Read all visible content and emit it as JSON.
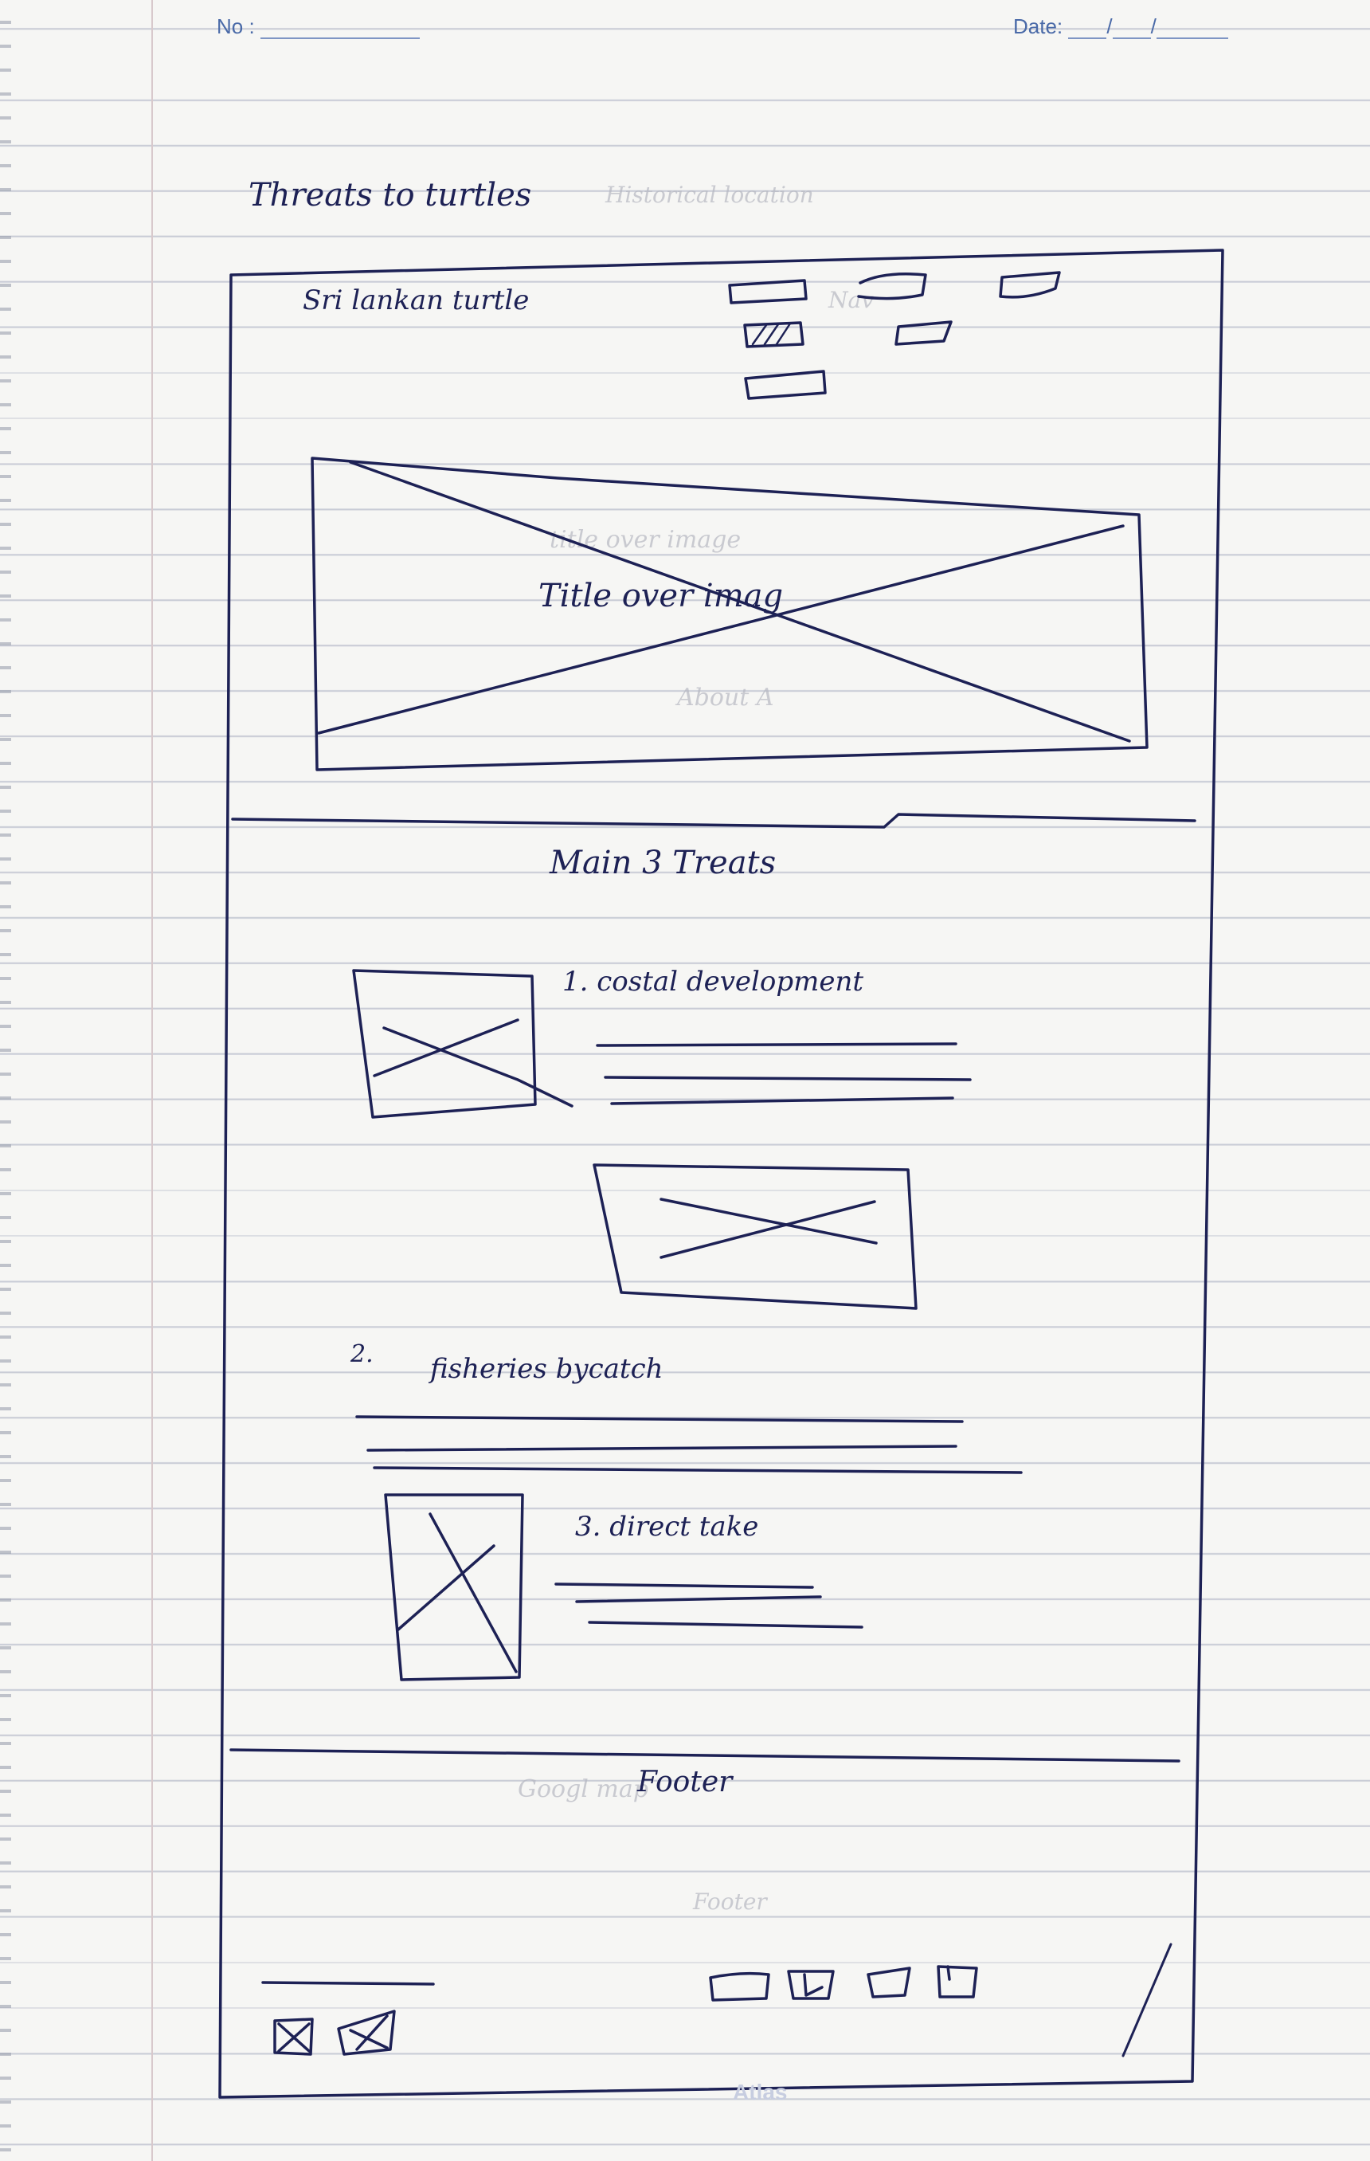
{
  "header": {
    "no_label": "No :",
    "date_label": "Date:",
    "date_separator": "/"
  },
  "title": "Threats to turtles",
  "nav": {
    "brand": "Sri lankan turtle"
  },
  "hero": {
    "caption": "Title over imag"
  },
  "main": {
    "heading": "Main 3 Treats",
    "threats": [
      {
        "label": "1. costal development"
      },
      {
        "label": "2.",
        "label_rest": "fisheries bycatch"
      },
      {
        "label": "3. direct take"
      }
    ]
  },
  "footer": {
    "label": "Footer"
  },
  "notebook_brand": "Atlas",
  "ghost_text": [
    "title over image",
    "About A",
    "Nav",
    "Footer",
    "Googl map",
    "Historical location"
  ]
}
